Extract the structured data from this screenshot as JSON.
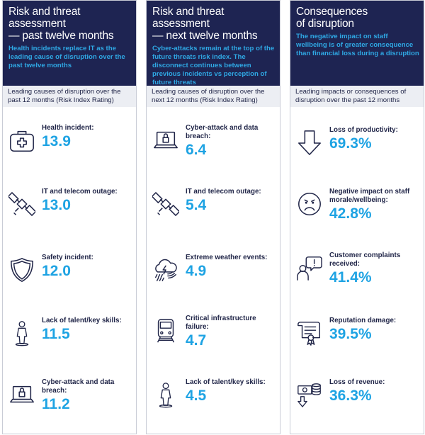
{
  "columns": [
    {
      "title_line1": "Risk and threat assessment",
      "title_line2": "— past twelve months",
      "subtitle": "Health incidents replace IT as the leading cause of disruption over the past twelve months",
      "band": "Leading causes of disruption over the past 12 months (Risk Index Rating)",
      "items": [
        {
          "icon": "medical-kit-icon",
          "label": "Health incident:",
          "value": "13.9"
        },
        {
          "icon": "satellite-icon",
          "label": "IT and telecom outage:",
          "value": "13.0"
        },
        {
          "icon": "shield-icon",
          "label": "Safety incident:",
          "value": "12.0"
        },
        {
          "icon": "person-icon",
          "label": "Lack of talent/key skills:",
          "value": "11.5"
        },
        {
          "icon": "laptop-lock-icon",
          "label": "Cyber-attack and data breach:",
          "value": "11.2"
        }
      ]
    },
    {
      "title_line1": "Risk and threat assessment",
      "title_line2": "— next twelve months",
      "subtitle": "Cyber-attacks remain at the top of the future threats risk index. The disconnect continues between previous incidents vs perception of future threats",
      "band": "Leading causes of disruption over the next 12 months (Risk Index Rating)",
      "items": [
        {
          "icon": "laptop-lock-icon",
          "label": "Cyber-attack and data breach:",
          "value": "6.4"
        },
        {
          "icon": "satellite-icon",
          "label": "IT and telecom outage:",
          "value": "5.4"
        },
        {
          "icon": "storm-cloud-icon",
          "label": "Extreme weather events:",
          "value": "4.9"
        },
        {
          "icon": "train-icon",
          "label": "Critical infrastructure failure:",
          "value": "4.7"
        },
        {
          "icon": "person-icon",
          "label": "Lack of talent/key skills:",
          "value": "4.5"
        }
      ]
    },
    {
      "title_line1": "Consequences",
      "title_line2": "of disruption",
      "subtitle": "The negative impact on staff wellbeing is of greater consequence than financial loss during a disruption",
      "band": "Leading impacts or consequences of disruption over the past 12 months",
      "items": [
        {
          "icon": "down-arrow-icon",
          "label": "Loss of productivity:",
          "value": "69.3%"
        },
        {
          "icon": "sad-face-icon",
          "label": "Negative impact on staff morale/wellbeing:",
          "value": "42.8%"
        },
        {
          "icon": "complaint-speech-icon",
          "label": "Customer complaints received:",
          "value": "41.4%"
        },
        {
          "icon": "certificate-icon",
          "label": "Reputation damage:",
          "value": "39.5%"
        },
        {
          "icon": "money-down-icon",
          "label": "Loss of revenue:",
          "value": "36.3%"
        }
      ]
    }
  ]
}
